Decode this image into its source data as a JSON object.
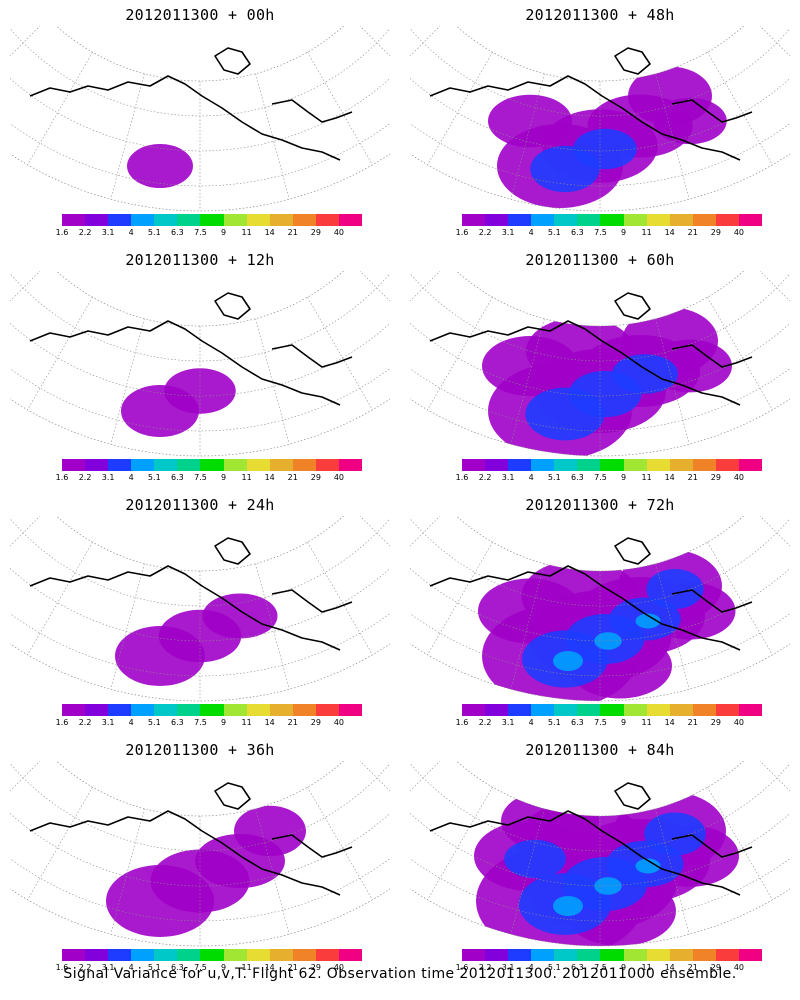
{
  "colorbar": {
    "colors": [
      "#a000c8",
      "#8200dc",
      "#1e3cff",
      "#00a0ff",
      "#00c8c8",
      "#00d28c",
      "#00dc00",
      "#a0e632",
      "#e6dc32",
      "#e6af2d",
      "#f08228",
      "#fa3c3c",
      "#f00082"
    ],
    "labels": [
      "1.6",
      "2.2",
      "3.1",
      "4",
      "5.1",
      "6.3",
      "7.5",
      "9",
      "11",
      "14",
      "21",
      "29",
      "40"
    ]
  },
  "panels": [
    {
      "title": "2012011300 + 00h",
      "intensity": 0.05
    },
    {
      "title": "2012011300 + 48h",
      "intensity": 0.55
    },
    {
      "title": "2012011300 + 12h",
      "intensity": 0.15
    },
    {
      "title": "2012011300 + 60h",
      "intensity": 0.7
    },
    {
      "title": "2012011300 + 24h",
      "intensity": 0.25
    },
    {
      "title": "2012011300 + 72h",
      "intensity": 0.8
    },
    {
      "title": "2012011300 + 36h",
      "intensity": 0.4
    },
    {
      "title": "2012011300 + 84h",
      "intensity": 0.9
    }
  ],
  "footer": "Signal Variance for u,v,T. Flight 62. Observation time 2012011300. 2012011000 ensemble."
}
